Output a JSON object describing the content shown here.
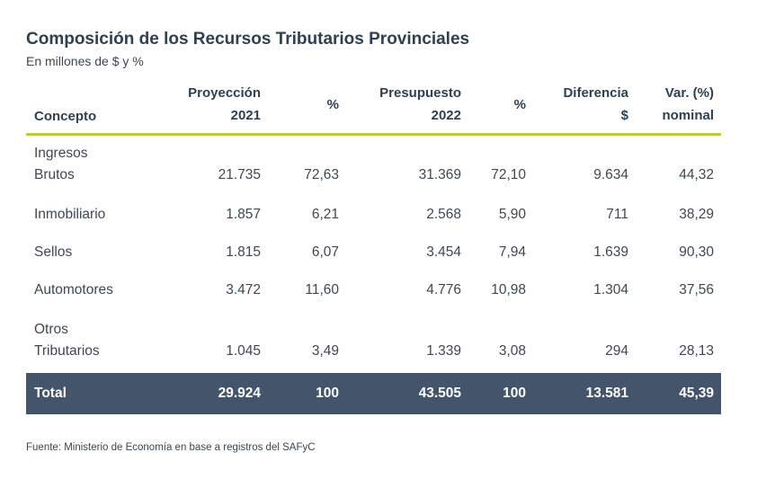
{
  "title": "Composición de los Recursos Tributarios Provinciales",
  "subtitle": "En millones de $ y %",
  "table": {
    "headers": {
      "concepto": "Concepto",
      "proyeccion_l1": "Proyección",
      "proyeccion_l2": "2021",
      "pct1": "%",
      "presupuesto_l1": "Presupuesto",
      "presupuesto_l2": "2022",
      "pct2": "%",
      "diferencia_l1": "Diferencia",
      "diferencia_l2": "$",
      "var_l1": "Var. (%)",
      "var_l2": "nominal"
    },
    "rows": [
      {
        "concepto_l1": "Ingresos",
        "concepto_l2": "Brutos",
        "proyeccion": "21.735",
        "pct1": "72,63",
        "presupuesto": "31.369",
        "pct2": "72,10",
        "diferencia": "9.634",
        "var": "44,32"
      },
      {
        "concepto_l1": "Inmobiliario",
        "proyeccion": "1.857",
        "pct1": "6,21",
        "presupuesto": "2.568",
        "pct2": "5,90",
        "diferencia": "711",
        "var": "38,29"
      },
      {
        "concepto_l1": "Sellos",
        "proyeccion": "1.815",
        "pct1": "6,07",
        "presupuesto": "3.454",
        "pct2": "7,94",
        "diferencia": "1.639",
        "var": "90,30"
      },
      {
        "concepto_l1": "Automotores",
        "proyeccion": "3.472",
        "pct1": "11,60",
        "presupuesto": "4.776",
        "pct2": "10,98",
        "diferencia": "1.304",
        "var": "37,56"
      },
      {
        "concepto_l1": "Otros",
        "concepto_l2": "Tributarios",
        "proyeccion": "1.045",
        "pct1": "3,49",
        "presupuesto": "1.339",
        "pct2": "3,08",
        "diferencia": "294",
        "var": "28,13"
      }
    ],
    "total": {
      "concepto": "Total",
      "proyeccion": "29.924",
      "pct1": "100",
      "presupuesto": "43.505",
      "pct2": "100",
      "diferencia": "13.581",
      "var": "45,39"
    }
  },
  "footer": "Fuente: Ministerio de Economía en base a registros del SAFyC",
  "colors": {
    "accent_line": "#b3cf3a",
    "total_row_bg": "#44546a",
    "title_text": "#2f4050"
  }
}
